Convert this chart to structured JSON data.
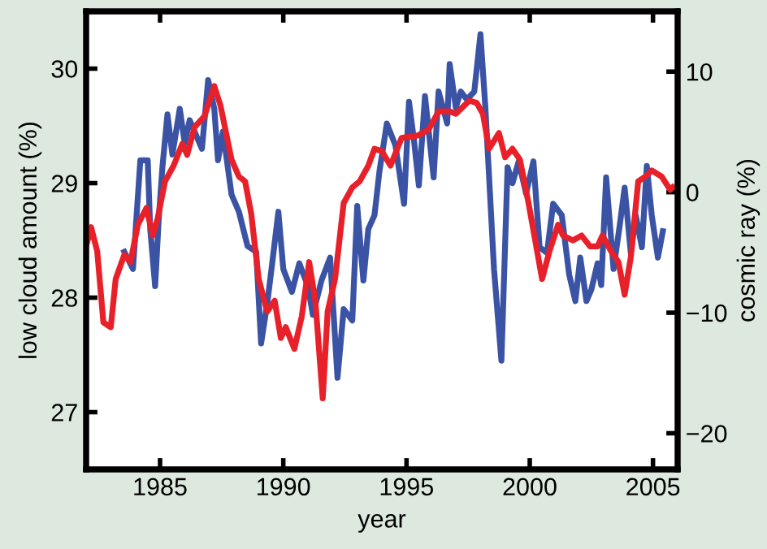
{
  "chart_data": {
    "type": "line",
    "xlabel": "year",
    "ylabel": "low cloud amount (%)",
    "y2label": "cosmic ray (%)",
    "xlim": [
      1982,
      2006
    ],
    "xticks": [
      1985,
      1990,
      1995,
      2000,
      2005
    ],
    "ylim": [
      26.5,
      30.5
    ],
    "yticks": [
      27,
      28,
      29,
      30
    ],
    "y2lim": [
      -23,
      15
    ],
    "y2ticks": [
      {
        "value": -20,
        "label": "−20"
      },
      {
        "value": -10,
        "label": "−10"
      },
      0,
      10
    ],
    "grid": false,
    "marker": "none",
    "line_style": "solid",
    "series": [
      {
        "color": "#3a53a4",
        "x": [
          1983.55,
          1983.9,
          1984.2,
          1984.5,
          1984.6,
          1984.8,
          1984.95,
          1985.1,
          1985.3,
          1985.5,
          1985.8,
          1986.0,
          1986.2,
          1986.5,
          1986.7,
          1986.95,
          1987.2,
          1987.35,
          1987.55,
          1987.9,
          1988.2,
          1988.55,
          1988.9,
          1989.1,
          1989.35,
          1989.55,
          1989.8,
          1990.0,
          1990.35,
          1990.65,
          1991.0,
          1991.2,
          1991.55,
          1991.9,
          1992.2,
          1992.45,
          1992.8,
          1993.0,
          1993.25,
          1993.45,
          1993.7,
          1993.9,
          1994.2,
          1994.55,
          1994.9,
          1995.1,
          1995.3,
          1995.5,
          1995.75,
          1996.1,
          1996.3,
          1996.65,
          1996.75,
          1997.0,
          1997.2,
          1997.45,
          1997.75,
          1998.0,
          1998.2,
          1998.55,
          1998.85,
          1999.1,
          1999.3,
          1999.55,
          1999.85,
          2000.15,
          2000.4,
          2000.7,
          2000.95,
          2001.3,
          2001.6,
          2001.85,
          2002.05,
          2002.3,
          2002.5,
          2002.75,
          2002.9,
          2003.1,
          2003.4,
          2003.65,
          2003.85,
          2004.1,
          2004.3,
          2004.55,
          2004.75,
          2004.95,
          2005.2,
          2005.4
        ],
        "values": [
          28.4,
          28.25,
          29.2,
          29.2,
          28.6,
          28.1,
          28.7,
          29.15,
          29.6,
          29.25,
          29.65,
          29.35,
          29.55,
          29.4,
          29.3,
          29.9,
          29.65,
          29.2,
          29.45,
          28.9,
          28.75,
          28.45,
          28.4,
          27.6,
          27.95,
          28.3,
          28.75,
          28.25,
          28.05,
          28.3,
          28.1,
          27.85,
          28.15,
          28.35,
          27.3,
          27.9,
          27.8,
          28.8,
          28.15,
          28.6,
          28.72,
          29.1,
          29.52,
          29.33,
          28.82,
          29.71,
          29.38,
          28.98,
          29.76,
          29.05,
          29.8,
          29.52,
          30.04,
          29.66,
          29.8,
          29.73,
          29.8,
          30.3,
          29.66,
          28.25,
          27.45,
          29.14,
          29.0,
          29.19,
          28.91,
          29.19,
          28.44,
          28.39,
          28.82,
          28.72,
          28.2,
          27.97,
          28.35,
          27.97,
          28.07,
          28.3,
          28.11,
          29.05,
          28.25,
          28.63,
          28.96,
          28.39,
          28.72,
          28.44,
          29.15,
          28.72,
          28.35,
          28.58
        ]
      },
      {
        "color": "#e8202a",
        "axis": "y2",
        "x": [
          1982.0,
          1982.2,
          1982.45,
          1982.7,
          1983.0,
          1983.2,
          1983.55,
          1983.8,
          1984.1,
          1984.45,
          1984.7,
          1984.9,
          1985.2,
          1985.55,
          1985.9,
          1986.1,
          1986.4,
          1986.8,
          1987.2,
          1987.45,
          1987.9,
          1988.2,
          1988.45,
          1988.7,
          1989.0,
          1989.35,
          1989.65,
          1989.9,
          1990.1,
          1990.45,
          1990.75,
          1991.05,
          1991.3,
          1991.6,
          1991.8,
          1992.1,
          1992.45,
          1992.8,
          1993.1,
          1993.45,
          1993.7,
          1994.0,
          1994.35,
          1994.8,
          1995.45,
          1995.9,
          1996.3,
          1996.75,
          1997.0,
          1997.55,
          1997.85,
          1998.1,
          1998.35,
          1998.75,
          1999.0,
          1999.3,
          1999.6,
          1999.95,
          2000.3,
          2000.5,
          2000.8,
          2001.15,
          2001.35,
          2001.75,
          2002.1,
          2002.45,
          2002.75,
          2002.95,
          2003.3,
          2003.6,
          2003.85,
          2004.1,
          2004.4,
          2004.7,
          2004.95,
          2005.35,
          2005.7,
          2005.8
        ],
        "values": [
          -4.5,
          -2.9,
          -4.9,
          -10.8,
          -11.2,
          -7.2,
          -5.2,
          -5.8,
          -2.7,
          -1.3,
          -3.6,
          -2.2,
          0.9,
          2.2,
          4.0,
          3.1,
          5.4,
          6.3,
          8.8,
          7.2,
          2.7,
          1.3,
          0.9,
          -1.8,
          -7.2,
          -9.9,
          -9.0,
          -12.1,
          -11.2,
          -13.0,
          -10.3,
          -5.8,
          -9.0,
          -17.1,
          -9.9,
          -7.2,
          -0.9,
          0.4,
          0.9,
          2.2,
          3.6,
          3.4,
          2.2,
          4.5,
          4.7,
          5.2,
          6.7,
          6.7,
          6.5,
          7.6,
          7.4,
          6.5,
          3.6,
          4.9,
          2.9,
          3.6,
          2.7,
          -0.9,
          -4.9,
          -7.2,
          -4.9,
          -2.7,
          -3.6,
          -4.0,
          -3.6,
          -4.5,
          -4.5,
          -3.6,
          -4.9,
          -5.8,
          -8.5,
          -5.4,
          0.9,
          1.3,
          1.8,
          1.3,
          0.2,
          0.4
        ]
      }
    ]
  }
}
